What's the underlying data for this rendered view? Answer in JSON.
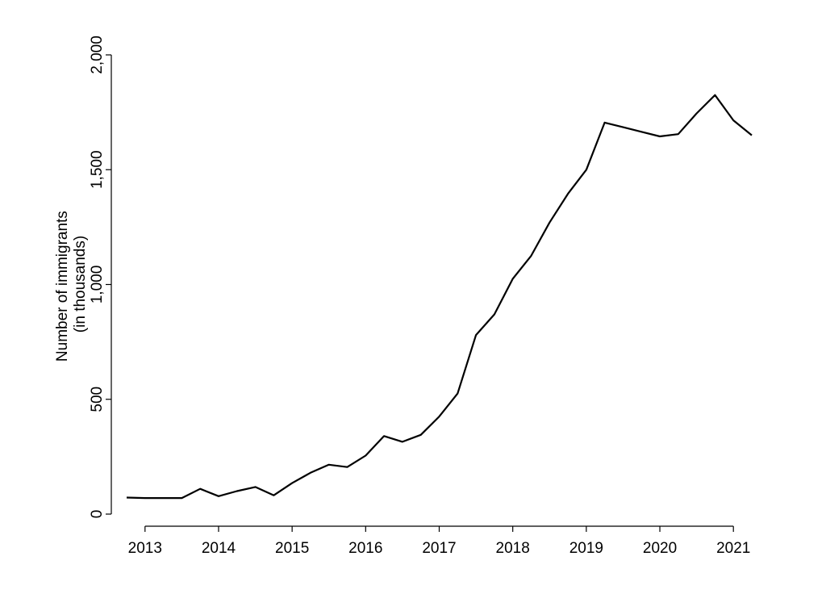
{
  "chart_data": {
    "type": "line",
    "title": "",
    "xlabel": "",
    "ylabel": [
      "Number of immigrants",
      "(in thousands)"
    ],
    "xlim": [
      2012.75,
      2021.25
    ],
    "ylim": [
      0,
      2000
    ],
    "x_ticks": [
      2013,
      2014,
      2015,
      2016,
      2017,
      2018,
      2019,
      2020,
      2021
    ],
    "x_tick_labels": [
      "2013",
      "2014",
      "2015",
      "2016",
      "2017",
      "2018",
      "2019",
      "2020",
      "2021"
    ],
    "y_ticks": [
      0,
      500,
      1000,
      1500,
      2000
    ],
    "y_tick_labels": [
      "0",
      "500",
      "1,000",
      "1,500",
      "2,000"
    ],
    "grid": false,
    "line_color": "#000000",
    "series": [
      {
        "x": [
          2012.75,
          2013.0,
          2013.25,
          2013.5,
          2013.75,
          2014.0,
          2014.25,
          2014.5,
          2014.75,
          2015.0,
          2015.25,
          2015.5,
          2015.75,
          2016.0,
          2016.25,
          2016.5,
          2016.75,
          2017.0,
          2017.25,
          2017.5,
          2017.75,
          2018.0,
          2018.25,
          2018.5,
          2018.75,
          2019.0,
          2019.25,
          2019.5,
          2019.75,
          2020.0,
          2020.25,
          2020.5,
          2020.75,
          2021.0,
          2021.25
        ],
        "y": [
          72,
          70,
          70,
          70,
          110,
          78,
          100,
          118,
          82,
          135,
          180,
          215,
          205,
          255,
          340,
          315,
          345,
          425,
          525,
          780,
          870,
          1025,
          1125,
          1270,
          1395,
          1500,
          1705,
          1685,
          1665,
          1645,
          1655,
          1745,
          1825,
          1715,
          1650
        ]
      }
    ]
  }
}
